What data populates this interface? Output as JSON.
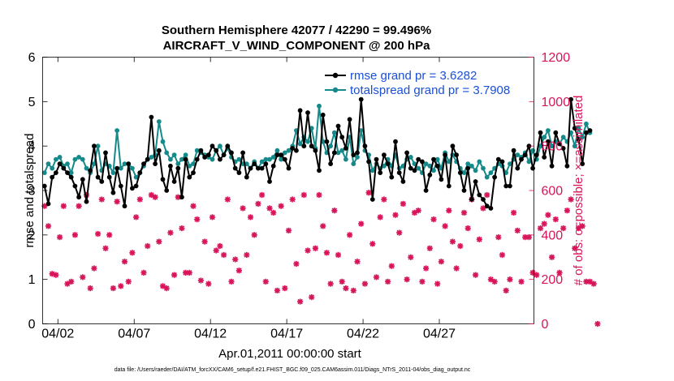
{
  "chart_data": {
    "type": "line",
    "title": "Southern Hemisphere 42077 / 42290 = 99.496%",
    "subtitle": "AIRCRAFT_V_WIND_COMPONENT @ 200 hPa",
    "xlabel": "Apr.01,2011 00:00:00 start",
    "ylabel_left": "rmse and totalspread",
    "ylabel_right": "# of obs: o=possible; ×=assimilated",
    "footnote": "data file: /Users/raeder/DAI/ATM_forcXX/CAM6_setup/f.e21.FHIST_BGC.f09_025.CAM6assim.011/Diags_NTrS_2011-04/obs_diag_output.nc",
    "x_range": [
      0,
      32.2
    ],
    "ylim_left": [
      0,
      6
    ],
    "ylim_right": [
      0,
      1200
    ],
    "x_ticks": [
      {
        "pos": 1,
        "label": "04/02"
      },
      {
        "pos": 6,
        "label": "04/07"
      },
      {
        "pos": 11,
        "label": "04/12"
      },
      {
        "pos": 16,
        "label": "04/17"
      },
      {
        "pos": 21,
        "label": "04/22"
      },
      {
        "pos": 26,
        "label": "04/27"
      }
    ],
    "yl_ticks": [
      "0",
      "1",
      "2",
      "3",
      "4",
      "5",
      "6"
    ],
    "yr_ticks": [
      "0",
      "200",
      "400",
      "600",
      "800",
      "1000",
      "1200"
    ],
    "step_days": 0.25,
    "series": [
      {
        "name": "rmse",
        "legend": "rmse grand pr = 3.6282",
        "color": "#000000",
        "values": [
          3.1,
          2.7,
          3.3,
          3.4,
          3.6,
          3.5,
          3.4,
          3.3,
          3.1,
          2.85,
          3.25,
          2.75,
          3.45,
          4.0,
          3.3,
          3.2,
          3.85,
          3.3,
          2.95,
          3.5,
          3.1,
          2.65,
          3.6,
          3.05,
          3.1,
          3.4,
          3.6,
          3.7,
          4.65,
          3.6,
          3.9,
          3.25,
          3.0,
          3.55,
          3.2,
          3.5,
          2.85,
          3.7,
          3.3,
          3.4,
          3.7,
          3.9,
          3.75,
          3.8,
          4.0,
          3.9,
          3.7,
          3.8,
          4.0,
          3.85,
          3.5,
          3.4,
          3.85,
          3.3,
          3.5,
          3.6,
          3.5,
          3.5,
          3.6,
          3.2,
          3.55,
          3.8,
          3.8,
          3.7,
          3.5,
          3.95,
          3.9,
          4.8,
          4.0,
          4.75,
          4.0,
          3.9,
          3.45,
          4.7,
          4.1,
          3.6,
          3.85,
          4.45,
          4.2,
          3.95,
          4.6,
          3.8,
          3.85,
          5.05,
          4.0,
          3.65,
          2.8,
          3.7,
          3.4,
          3.8,
          3.6,
          3.3,
          4.1,
          3.4,
          3.2,
          3.85,
          3.5,
          3.45,
          3.7,
          3.65,
          3.0,
          3.35,
          3.7,
          3.55,
          3.25,
          3.8,
          3.1,
          4.0,
          3.8,
          3.4,
          3.0,
          3.5,
          2.8,
          3.2,
          2.9,
          2.8,
          2.65,
          2.6,
          3.3,
          3.7,
          3.65,
          3.1,
          3.1,
          3.9,
          3.5,
          3.7,
          3.8,
          4.0,
          3.5,
          3.8,
          4.3,
          3.75,
          4.1,
          3.55,
          4.3,
          4.05,
          3.95,
          3.55,
          5.05,
          4.4,
          4.15,
          3.6,
          4.3,
          4.35
        ]
      },
      {
        "name": "totalspread",
        "legend": "totalspread grand pr = 3.7908",
        "color": "#148a8a",
        "values": [
          3.4,
          3.6,
          3.5,
          3.7,
          3.75,
          3.55,
          3.6,
          3.4,
          3.7,
          3.75,
          3.7,
          3.5,
          3.4,
          3.6,
          4.0,
          3.45,
          3.6,
          3.55,
          3.4,
          4.35,
          3.5,
          3.6,
          3.6,
          3.5,
          3.3,
          3.4,
          3.55,
          3.7,
          3.75,
          3.8,
          4.55,
          4.1,
          3.85,
          3.7,
          3.8,
          3.6,
          3.7,
          3.8,
          3.55,
          3.6,
          3.9,
          3.85,
          3.8,
          3.75,
          3.7,
          3.9,
          4.0,
          3.8,
          3.95,
          3.75,
          3.65,
          3.7,
          3.6,
          3.6,
          3.5,
          3.65,
          3.5,
          3.65,
          3.7,
          3.7,
          3.75,
          3.9,
          3.7,
          3.85,
          3.9,
          4.0,
          4.35,
          4.05,
          4.2,
          4.1,
          4.4,
          3.95,
          4.9,
          4.1,
          3.85,
          4.0,
          4.3,
          3.85,
          3.9,
          3.7,
          4.2,
          3.6,
          3.75,
          4.35,
          3.9,
          3.8,
          3.45,
          3.6,
          3.5,
          3.55,
          3.7,
          3.55,
          3.8,
          3.5,
          3.55,
          3.7,
          3.75,
          3.6,
          3.5,
          3.4,
          3.6,
          3.55,
          3.45,
          3.7,
          3.5,
          3.85,
          3.65,
          3.8,
          3.65,
          3.5,
          3.4,
          3.6,
          3.55,
          3.45,
          3.65,
          3.5,
          3.3,
          3.4,
          3.5,
          3.6,
          3.55,
          3.4,
          3.6,
          3.7,
          3.8,
          3.75,
          3.85,
          3.65,
          3.9,
          3.7,
          4.0,
          4.2,
          4.35,
          4.0,
          4.1,
          4.05,
          4.2,
          4.1,
          4.3,
          4.0,
          4.4,
          4.2,
          4.5,
          4.3
        ]
      }
    ],
    "obs_assimilated": {
      "name": "# assimilated obs",
      "color": "#d8145a",
      "values": [
        530,
        440,
        225,
        220,
        390,
        530,
        180,
        190,
        400,
        530,
        210,
        580,
        160,
        250,
        405,
        560,
        340,
        400,
        160,
        550,
        170,
        280,
        190,
        320,
        480,
        560,
        230,
        350,
        580,
        570,
        370,
        170,
        160,
        410,
        220,
        570,
        430,
        230,
        230,
        530,
        470,
        195,
        370,
        180,
        480,
        330,
        350,
        310,
        560,
        190,
        290,
        240,
        520,
        310,
        480,
        400,
        540,
        580,
        190,
        520,
        500,
        150,
        530,
        160,
        420,
        560,
        270,
        100,
        580,
        330,
        120,
        340,
        580,
        440,
        320,
        180,
        510,
        310,
        190,
        160,
        400,
        150,
        280,
        450,
        180,
        590,
        360,
        210,
        480,
        560,
        190,
        260,
        490,
        410,
        540,
        200,
        300,
        500,
        510,
        190,
        250,
        340,
        470,
        180,
        280,
        440,
        510,
        370,
        250,
        350,
        500,
        430,
        560,
        220,
        380,
        520,
        580,
        200,
        190,
        390,
        310,
        150,
        200,
        500,
        420,
        190,
        390,
        390,
        230,
        220,
        430,
        450,
        490,
        300,
        470,
        230,
        430,
        510,
        560,
        340,
        430,
        440,
        190,
        190,
        180,
        0
      ]
    }
  }
}
